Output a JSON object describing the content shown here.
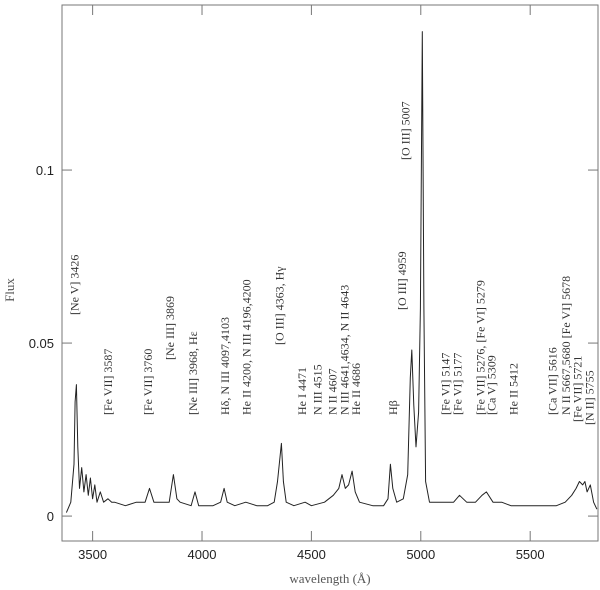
{
  "chart_data": {
    "type": "line",
    "xlabel": "wavelength (Å)",
    "ylabel": "Flux",
    "x": [
      3380,
      3400,
      3415,
      3420,
      3426,
      3432,
      3440,
      3450,
      3460,
      3470,
      3480,
      3490,
      3500,
      3510,
      3520,
      3535,
      3550,
      3570,
      3587,
      3600,
      3650,
      3700,
      3740,
      3760,
      3780,
      3800,
      3850,
      3869,
      3885,
      3900,
      3950,
      3968,
      3985,
      4000,
      4050,
      4085,
      4101,
      4115,
      4150,
      4200,
      4250,
      4300,
      4330,
      4345,
      4363,
      4372,
      4385,
      4420,
      4471,
      4500,
      4560,
      4600,
      4625,
      4640,
      4655,
      4670,
      4686,
      4700,
      4720,
      4780,
      4830,
      4850,
      4861,
      4872,
      4890,
      4920,
      4940,
      4952,
      4959,
      4968,
      4978,
      4990,
      4998,
      5007,
      5014,
      5022,
      5040,
      5100,
      5150,
      5177,
      5210,
      5250,
      5280,
      5300,
      5330,
      5370,
      5412,
      5460,
      5500,
      5560,
      5620,
      5660,
      5690,
      5710,
      5725,
      5740,
      5750,
      5760,
      5775,
      5790,
      5805
    ],
    "values": [
      0.001,
      0.004,
      0.015,
      0.033,
      0.038,
      0.02,
      0.008,
      0.014,
      0.007,
      0.012,
      0.006,
      0.011,
      0.005,
      0.009,
      0.004,
      0.007,
      0.004,
      0.005,
      0.004,
      0.004,
      0.003,
      0.004,
      0.004,
      0.008,
      0.004,
      0.004,
      0.004,
      0.012,
      0.005,
      0.004,
      0.003,
      0.007,
      0.003,
      0.003,
      0.003,
      0.004,
      0.008,
      0.004,
      0.003,
      0.004,
      0.003,
      0.003,
      0.004,
      0.01,
      0.021,
      0.01,
      0.004,
      0.003,
      0.004,
      0.003,
      0.004,
      0.006,
      0.008,
      0.012,
      0.008,
      0.009,
      0.013,
      0.007,
      0.004,
      0.003,
      0.003,
      0.005,
      0.015,
      0.008,
      0.004,
      0.005,
      0.012,
      0.04,
      0.048,
      0.032,
      0.02,
      0.03,
      0.06,
      0.14,
      0.06,
      0.01,
      0.004,
      0.004,
      0.004,
      0.006,
      0.004,
      0.004,
      0.006,
      0.007,
      0.004,
      0.004,
      0.003,
      0.003,
      0.003,
      0.003,
      0.003,
      0.004,
      0.006,
      0.008,
      0.01,
      0.009,
      0.01,
      0.007,
      0.009,
      0.004,
      0.002
    ],
    "color": "#222222",
    "xlim": [
      3360,
      5810
    ],
    "ylim": [
      -0.0072,
      0.1477
    ],
    "xticks": [
      3500,
      4000,
      4500,
      5000,
      5500
    ],
    "yticks": [
      0,
      0.05,
      0.1
    ],
    "annotations": [
      {
        "text": "[Ne V] 3426",
        "x": 3418
      },
      {
        "text": "[Fe VII] 3587",
        "x": 3570
      },
      {
        "text": "[Fe VII] 3760",
        "x": 3752
      },
      {
        "text": "[Ne III] 3869",
        "x": 3853
      },
      {
        "text": "[Ne III] 3968, Hε",
        "x": 3958
      },
      {
        "text": "Hδ, N III 4097,4103",
        "x": 4104
      },
      {
        "text": "He II 4200, N III 4196,4200",
        "x": 4204
      },
      {
        "text": "[O III] 4363, Hγ",
        "x": 4355
      },
      {
        "text": "He I 4471",
        "x": 4456
      },
      {
        "text": "N III 4515",
        "x": 4529
      },
      {
        "text": "N II 4607",
        "x": 4597
      },
      {
        "text": "N III 4641,4634, N II 4643",
        "x": 4652
      },
      {
        "text": "He II 4686",
        "x": 4703
      },
      {
        "text": "Hβ",
        "x": 4872
      },
      {
        "text": "[O III] 4959",
        "x": 4915
      },
      {
        "text": "[O III] 5007",
        "x": 4931
      },
      {
        "text": "[Fe VI] 5147",
        "x": 5113
      },
      {
        "text": "[Fe VI] 5177",
        "x": 5168
      },
      {
        "text": "[Fe VII] 5276, [Fe VI] 5279",
        "x": 5273
      },
      {
        "text": "[Ca V] 5309",
        "x": 5323
      },
      {
        "text": "He II 5412",
        "x": 5424
      },
      {
        "text": "[Ca VII] 5616",
        "x": 5603
      },
      {
        "text": "N II 5667,5680 [Fe VI] 5678",
        "x": 5663
      },
      {
        "text": "[Fe VII] 5721",
        "x": 5716
      },
      {
        "text": "[N II] 5755",
        "x": 5771
      }
    ]
  }
}
